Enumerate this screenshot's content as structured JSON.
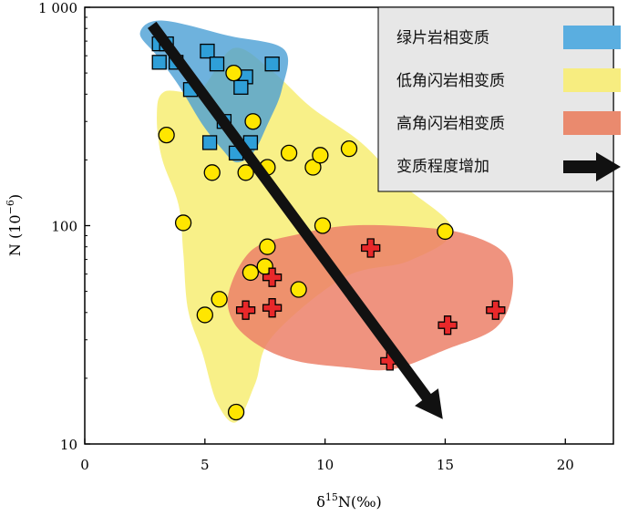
{
  "chart_data": {
    "type": "scatter",
    "xlabel_base": "δ",
    "xlabel_sup": "15",
    "xlabel_tail": "N(‰)",
    "ylabel_base": "N (10",
    "ylabel_sup": "−6",
    "ylabel_tail": ")",
    "xlim": [
      0,
      22
    ],
    "ylim": [
      10,
      1000
    ],
    "y_scale": "log",
    "x_ticks": [
      {
        "value": 0,
        "label": "0"
      },
      {
        "value": 5,
        "label": "5"
      },
      {
        "value": 10,
        "label": "10"
      },
      {
        "value": 15,
        "label": "15"
      },
      {
        "value": 20,
        "label": "20"
      }
    ],
    "y_ticks": [
      {
        "value": 10,
        "label": "10"
      },
      {
        "value": 100,
        "label": "100"
      },
      {
        "value": 1000,
        "label": "1 000"
      }
    ],
    "legend_position": "top-right",
    "series": [
      {
        "name": "绿片岩相变质",
        "marker": "square",
        "color": "#2f9fd8",
        "region_color": "#4a9fd4",
        "region": [
          [
            3.2,
            870
          ],
          [
            6,
            740
          ],
          [
            8.3,
            640
          ],
          [
            8.2,
            420
          ],
          [
            7.6,
            290
          ],
          [
            7.0,
            215
          ],
          [
            6.3,
            195
          ],
          [
            5.7,
            225
          ],
          [
            4.9,
            290
          ],
          [
            3.9,
            440
          ],
          [
            3.0,
            600
          ],
          [
            2.3,
            760
          ]
        ],
        "points": [
          [
            3.1,
            680
          ],
          [
            3.4,
            680
          ],
          [
            3.1,
            560
          ],
          [
            3.8,
            560
          ],
          [
            5.1,
            630
          ],
          [
            5.5,
            550
          ],
          [
            7.8,
            550
          ],
          [
            6.7,
            480
          ],
          [
            6.5,
            430
          ],
          [
            4.4,
            420
          ],
          [
            5.8,
            300
          ],
          [
            5.2,
            240
          ],
          [
            6.9,
            240
          ],
          [
            6.3,
            215
          ]
        ]
      },
      {
        "name": "低角闪岩相变质",
        "marker": "circle",
        "color": "#ffe600",
        "region_color": "#f6ec6a",
        "region": [
          [
            3.3,
            410
          ],
          [
            4.8,
            420
          ],
          [
            6.2,
            650
          ],
          [
            7.8,
            510
          ],
          [
            9.4,
            350
          ],
          [
            11.5,
            240
          ],
          [
            13.2,
            155
          ],
          [
            15.3,
            96
          ],
          [
            13.5,
            69
          ],
          [
            10.8,
            58
          ],
          [
            7.8,
            31
          ],
          [
            7.1,
            19
          ],
          [
            6.3,
            12.6
          ],
          [
            5.5,
            15.5
          ],
          [
            4.9,
            26
          ],
          [
            4.3,
            41
          ],
          [
            4.1,
            75
          ],
          [
            3.9,
            125
          ],
          [
            3.2,
            205
          ],
          [
            3.0,
            320
          ]
        ],
        "points": [
          [
            6.2,
            500
          ],
          [
            7.0,
            300
          ],
          [
            3.4,
            260
          ],
          [
            5.3,
            175
          ],
          [
            6.7,
            175
          ],
          [
            7.6,
            185
          ],
          [
            8.5,
            215
          ],
          [
            9.5,
            185
          ],
          [
            9.8,
            210
          ],
          [
            11.0,
            225
          ],
          [
            4.1,
            103
          ],
          [
            9.9,
            100
          ],
          [
            15.0,
            94
          ],
          [
            7.6,
            80
          ],
          [
            7.5,
            65
          ],
          [
            6.9,
            61
          ],
          [
            8.9,
            51
          ],
          [
            5.6,
            46
          ],
          [
            5.0,
            39
          ],
          [
            6.3,
            14
          ]
        ]
      },
      {
        "name": "高角闪岩相变质",
        "marker": "cross",
        "color": "#e8282a",
        "region_color": "#ec8068",
        "region": [
          [
            6.0,
            50
          ],
          [
            7.0,
            78
          ],
          [
            9.0,
            92
          ],
          [
            11.0,
            100
          ],
          [
            13.5,
            99
          ],
          [
            15.8,
            92
          ],
          [
            17.5,
            74
          ],
          [
            17.8,
            50
          ],
          [
            17.1,
            34
          ],
          [
            15.0,
            27
          ],
          [
            12.8,
            22
          ],
          [
            10.8,
            22.5
          ],
          [
            8.8,
            24
          ],
          [
            7.3,
            28
          ],
          [
            6.2,
            36
          ]
        ],
        "points": [
          [
            11.9,
            79
          ],
          [
            7.8,
            58
          ],
          [
            6.7,
            41
          ],
          [
            7.8,
            42
          ],
          [
            17.1,
            41
          ],
          [
            15.1,
            35
          ],
          [
            12.7,
            24
          ]
        ]
      }
    ],
    "arrow": {
      "label": "变质程度增加",
      "from": [
        2.8,
        830
      ],
      "to": [
        14.9,
        13
      ]
    }
  }
}
